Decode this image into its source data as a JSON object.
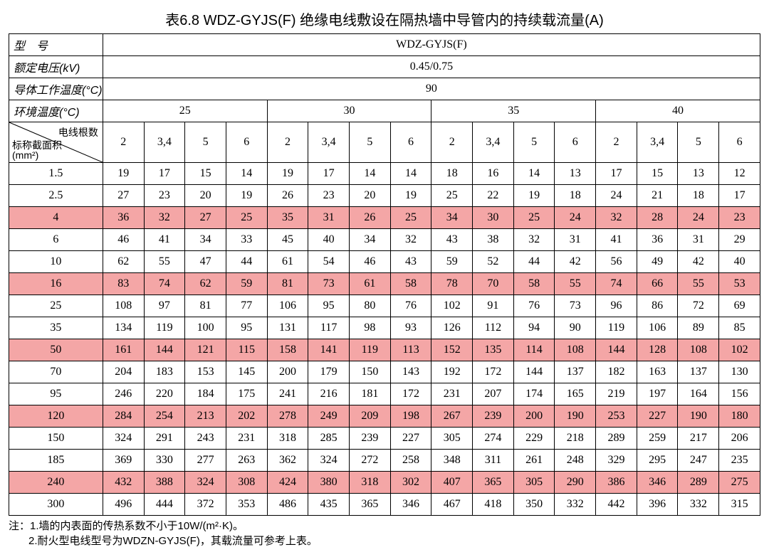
{
  "title": "表6.8  WDZ-GYJS(F) 绝缘电线敷设在隔热墙中导管内的持续载流量(A)",
  "headers": {
    "model_label": "型　号",
    "model_value": "WDZ-GYJS(F)",
    "voltage_label": "额定电压(kV)",
    "voltage_value": "0.45/0.75",
    "cond_temp_label": "导体工作温度(°C)",
    "cond_temp_value": "90",
    "amb_temp_label": "环境温度(°C)",
    "diag_top": "电线根数",
    "diag_bot": "标称截面积\n(mm²)"
  },
  "ambient_temps": [
    "25",
    "30",
    "35",
    "40"
  ],
  "sub_cols": [
    "2",
    "3,4",
    "5",
    "6"
  ],
  "rows": [
    {
      "label": "1.5",
      "hl": false,
      "v": [
        "19",
        "17",
        "15",
        "14",
        "19",
        "17",
        "14",
        "14",
        "18",
        "16",
        "14",
        "13",
        "17",
        "15",
        "13",
        "12"
      ]
    },
    {
      "label": "2.5",
      "hl": false,
      "v": [
        "27",
        "23",
        "20",
        "19",
        "26",
        "23",
        "20",
        "19",
        "25",
        "22",
        "19",
        "18",
        "24",
        "21",
        "18",
        "17"
      ]
    },
    {
      "label": "4",
      "hl": true,
      "v": [
        "36",
        "32",
        "27",
        "25",
        "35",
        "31",
        "26",
        "25",
        "34",
        "30",
        "25",
        "24",
        "32",
        "28",
        "24",
        "23"
      ]
    },
    {
      "label": "6",
      "hl": false,
      "v": [
        "46",
        "41",
        "34",
        "33",
        "45",
        "40",
        "34",
        "32",
        "43",
        "38",
        "32",
        "31",
        "41",
        "36",
        "31",
        "29"
      ]
    },
    {
      "label": "10",
      "hl": false,
      "v": [
        "62",
        "55",
        "47",
        "44",
        "61",
        "54",
        "46",
        "43",
        "59",
        "52",
        "44",
        "42",
        "56",
        "49",
        "42",
        "40"
      ]
    },
    {
      "label": "16",
      "hl": true,
      "v": [
        "83",
        "74",
        "62",
        "59",
        "81",
        "73",
        "61",
        "58",
        "78",
        "70",
        "58",
        "55",
        "74",
        "66",
        "55",
        "53"
      ]
    },
    {
      "label": "25",
      "hl": false,
      "v": [
        "108",
        "97",
        "81",
        "77",
        "106",
        "95",
        "80",
        "76",
        "102",
        "91",
        "76",
        "73",
        "96",
        "86",
        "72",
        "69"
      ]
    },
    {
      "label": "35",
      "hl": false,
      "v": [
        "134",
        "119",
        "100",
        "95",
        "131",
        "117",
        "98",
        "93",
        "126",
        "112",
        "94",
        "90",
        "119",
        "106",
        "89",
        "85"
      ]
    },
    {
      "label": "50",
      "hl": true,
      "v": [
        "161",
        "144",
        "121",
        "115",
        "158",
        "141",
        "119",
        "113",
        "152",
        "135",
        "114",
        "108",
        "144",
        "128",
        "108",
        "102"
      ]
    },
    {
      "label": "70",
      "hl": false,
      "v": [
        "204",
        "183",
        "153",
        "145",
        "200",
        "179",
        "150",
        "143",
        "192",
        "172",
        "144",
        "137",
        "182",
        "163",
        "137",
        "130"
      ]
    },
    {
      "label": "95",
      "hl": false,
      "v": [
        "246",
        "220",
        "184",
        "175",
        "241",
        "216",
        "181",
        "172",
        "231",
        "207",
        "174",
        "165",
        "219",
        "197",
        "164",
        "156"
      ]
    },
    {
      "label": "120",
      "hl": true,
      "v": [
        "284",
        "254",
        "213",
        "202",
        "278",
        "249",
        "209",
        "198",
        "267",
        "239",
        "200",
        "190",
        "253",
        "227",
        "190",
        "180"
      ]
    },
    {
      "label": "150",
      "hl": false,
      "v": [
        "324",
        "291",
        "243",
        "231",
        "318",
        "285",
        "239",
        "227",
        "305",
        "274",
        "229",
        "218",
        "289",
        "259",
        "217",
        "206"
      ]
    },
    {
      "label": "185",
      "hl": false,
      "v": [
        "369",
        "330",
        "277",
        "263",
        "362",
        "324",
        "272",
        "258",
        "348",
        "311",
        "261",
        "248",
        "329",
        "295",
        "247",
        "235"
      ]
    },
    {
      "label": "240",
      "hl": true,
      "v": [
        "432",
        "388",
        "324",
        "308",
        "424",
        "380",
        "318",
        "302",
        "407",
        "365",
        "305",
        "290",
        "386",
        "346",
        "289",
        "275"
      ]
    },
    {
      "label": "300",
      "hl": false,
      "v": [
        "496",
        "444",
        "372",
        "353",
        "486",
        "435",
        "365",
        "346",
        "467",
        "418",
        "350",
        "332",
        "442",
        "396",
        "332",
        "315"
      ]
    }
  ],
  "notes": {
    "prefix": "注：",
    "n1": "1.墙的内表面的传热系数不小于10W/(m²·K)。",
    "n2": "2.耐火型电线型号为WDZN-GYJS(F)，其载流量可参考上表。"
  },
  "style": {
    "highlight_color": "#f4a6a6",
    "border_color": "#000000",
    "background": "#ffffff"
  }
}
